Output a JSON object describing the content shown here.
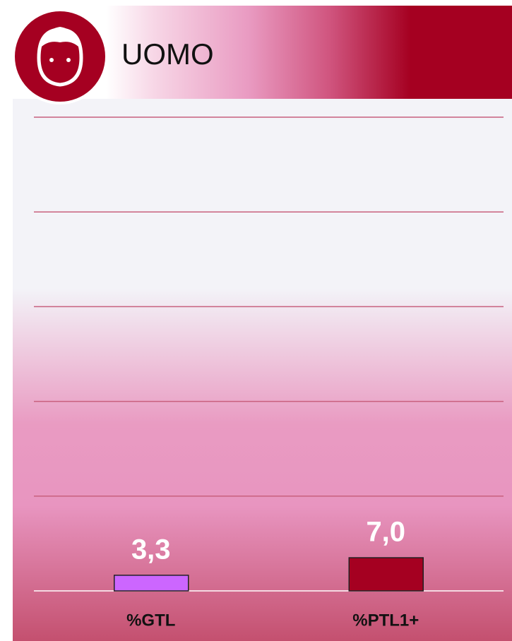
{
  "chart_data": {
    "type": "bar",
    "title": "UOMO",
    "categories": [
      "%GTL",
      "%PTL1+"
    ],
    "values": [
      3.3,
      7.0
    ],
    "value_labels": [
      "3,3",
      "7,0"
    ],
    "colors": [
      "#cc66ff",
      "#a50021"
    ],
    "ylim": [
      0,
      100
    ],
    "yticks": [
      0,
      20,
      40,
      60,
      80,
      100
    ],
    "grid": true
  }
}
